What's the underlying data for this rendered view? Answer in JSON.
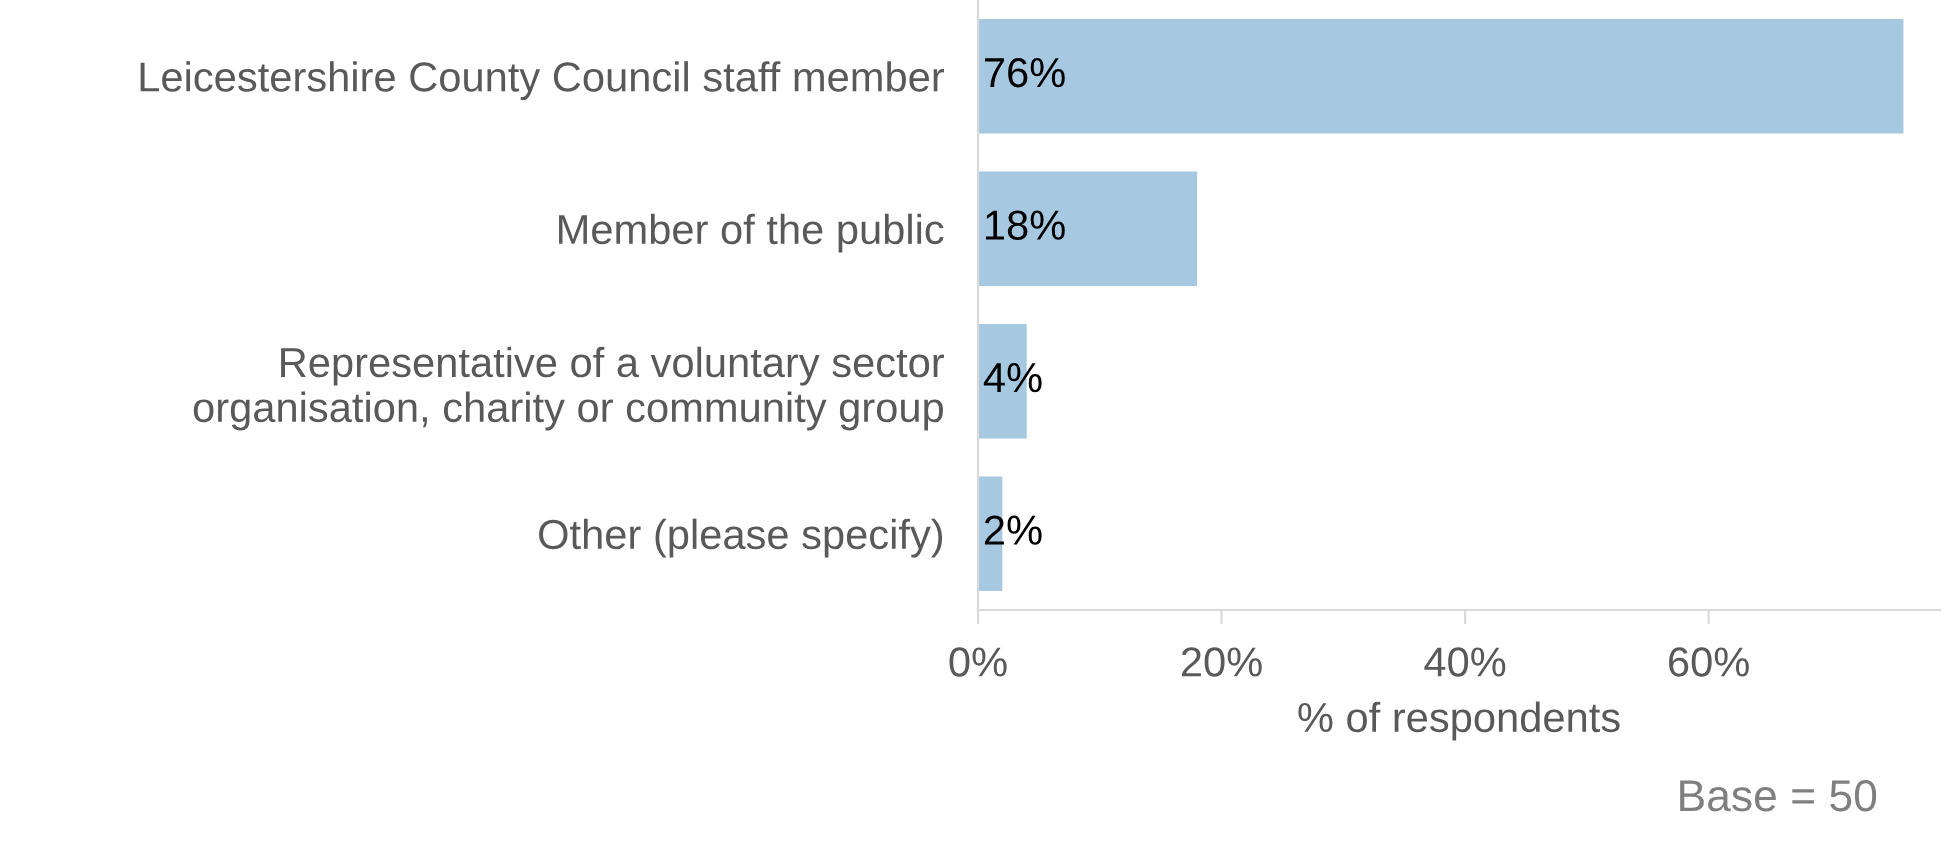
{
  "chart_data": {
    "type": "bar",
    "orientation": "horizontal",
    "categories": [
      "Leicestershire County Council staff member",
      "Member of the public",
      "Representative of a voluntary sector\norganisation, charity or community group",
      "Other (please specify)"
    ],
    "values": [
      76,
      18,
      4,
      2
    ],
    "value_labels": [
      "76%",
      "18%",
      "4%",
      "2%"
    ],
    "color": "#a6c8e0",
    "xlim": [
      0,
      79
    ],
    "xticks": [
      {
        "value": 0,
        "label": "0%"
      },
      {
        "value": 20,
        "label": "20%"
      },
      {
        "value": 40,
        "label": "40%"
      },
      {
        "value": 60,
        "label": "60%"
      }
    ],
    "xlabel": "% of respondents",
    "annotations": [
      "Base = 50"
    ],
    "grid": false
  }
}
